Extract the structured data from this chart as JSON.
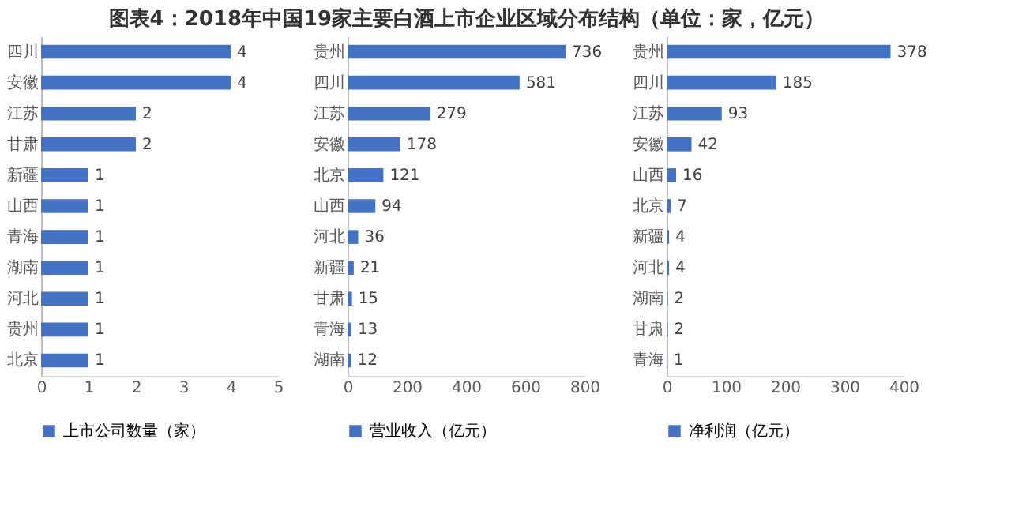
{
  "chart_data": [
    {
      "type": "bar",
      "orientation": "horizontal",
      "title": "图表4：2018年中国19家主要白酒上市企业区域分布结构（单位：家，亿元）",
      "categories": [
        "四川",
        "安徽",
        "江苏",
        "甘肃",
        "新疆",
        "山西",
        "青海",
        "湖南",
        "河北",
        "贵州",
        "北京"
      ],
      "series": [
        {
          "name": "上市公司数量（家）",
          "color": "#4472c4",
          "values": [
            4,
            4,
            2,
            2,
            1,
            1,
            1,
            1,
            1,
            1,
            1
          ]
        }
      ],
      "xlim": [
        0,
        5
      ],
      "xticks": [
        0,
        1,
        2,
        3,
        4,
        5
      ],
      "data_labels": true,
      "grid": false,
      "legend": "bottom"
    },
    {
      "type": "bar",
      "orientation": "horizontal",
      "categories": [
        "贵州",
        "四川",
        "江苏",
        "安徽",
        "北京",
        "山西",
        "河北",
        "新疆",
        "甘肃",
        "青海",
        "湖南"
      ],
      "series": [
        {
          "name": "营业收入（亿元）",
          "color": "#4472c4",
          "values": [
            736,
            581,
            279,
            178,
            121,
            94,
            36,
            21,
            15,
            13,
            12
          ]
        }
      ],
      "xlim": [
        0,
        800
      ],
      "xticks": [
        0,
        200,
        400,
        600,
        800
      ],
      "data_labels": true,
      "grid": false,
      "legend": "bottom"
    },
    {
      "type": "bar",
      "orientation": "horizontal",
      "categories": [
        "贵州",
        "四川",
        "江苏",
        "安徽",
        "山西",
        "北京",
        "新疆",
        "河北",
        "湖南",
        "甘肃",
        "青海"
      ],
      "series": [
        {
          "name": "净利润（亿元）",
          "color": "#4472c4",
          "values": [
            378,
            185,
            93,
            42,
            16,
            7,
            4,
            4,
            2,
            2,
            1
          ]
        }
      ],
      "xlim": [
        0,
        400
      ],
      "xticks": [
        0,
        100,
        200,
        300,
        400
      ],
      "data_labels": true,
      "grid": false,
      "legend": "bottom"
    }
  ]
}
